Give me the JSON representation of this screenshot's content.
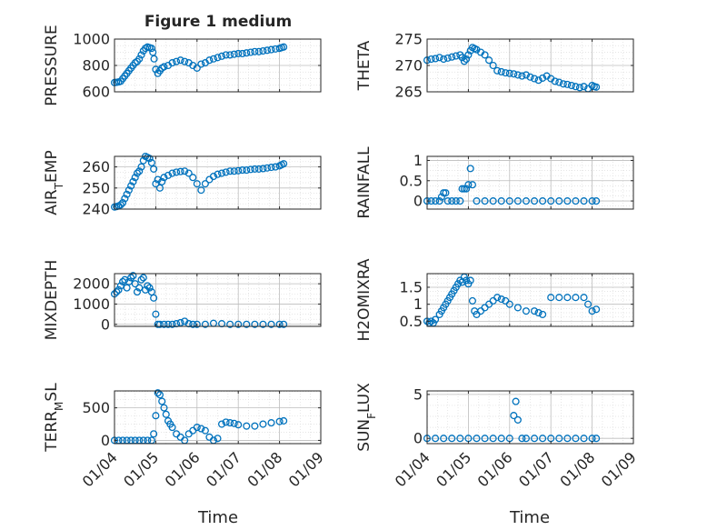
{
  "figure_title": "Figure 1 medium",
  "colors": {
    "marker": "#0072BD",
    "axis": "#262626",
    "grid": "#bdbdbd",
    "background": "#ffffff"
  },
  "chart_data": [
    {
      "type": "scatter",
      "ylabel": "PRESSURE",
      "ylim": [
        600,
        1000
      ],
      "yticks": [
        600,
        800,
        1000
      ],
      "xlim": [
        0,
        5
      ],
      "x": [
        0.0,
        0.05,
        0.1,
        0.15,
        0.2,
        0.25,
        0.3,
        0.35,
        0.4,
        0.45,
        0.5,
        0.55,
        0.6,
        0.65,
        0.7,
        0.75,
        0.8,
        0.85,
        0.9,
        0.93,
        0.96,
        1.0,
        1.05,
        1.1,
        1.15,
        1.2,
        1.3,
        1.4,
        1.5,
        1.6,
        1.7,
        1.8,
        1.9,
        2.0,
        2.1,
        2.2,
        2.3,
        2.4,
        2.5,
        2.6,
        2.7,
        2.8,
        2.9,
        3.0,
        3.1,
        3.2,
        3.3,
        3.4,
        3.5,
        3.6,
        3.7,
        3.8,
        3.9,
        4.0,
        4.05,
        4.1
      ],
      "y": [
        670,
        672,
        675,
        680,
        700,
        720,
        740,
        760,
        780,
        800,
        820,
        830,
        850,
        880,
        910,
        930,
        940,
        935,
        930,
        900,
        850,
        770,
        740,
        760,
        780,
        790,
        800,
        820,
        830,
        840,
        830,
        820,
        800,
        780,
        810,
        820,
        840,
        850,
        860,
        870,
        880,
        880,
        885,
        890,
        890,
        895,
        900,
        905,
        905,
        910,
        915,
        920,
        925,
        930,
        935,
        940
      ]
    },
    {
      "type": "scatter",
      "ylabel": "THETA",
      "ylim": [
        265,
        275
      ],
      "yticks": [
        265,
        270,
        275
      ],
      "xlim": [
        0,
        5
      ],
      "x": [
        0.0,
        0.1,
        0.2,
        0.3,
        0.4,
        0.5,
        0.6,
        0.7,
        0.8,
        0.85,
        0.9,
        0.95,
        1.0,
        1.05,
        1.1,
        1.15,
        1.2,
        1.3,
        1.4,
        1.5,
        1.6,
        1.7,
        1.8,
        1.9,
        2.0,
        2.1,
        2.2,
        2.3,
        2.4,
        2.5,
        2.6,
        2.7,
        2.8,
        2.9,
        3.0,
        3.1,
        3.2,
        3.3,
        3.4,
        3.5,
        3.6,
        3.7,
        3.8,
        3.9,
        4.0,
        4.05,
        4.1
      ],
      "y": [
        271.0,
        271.2,
        271.3,
        271.5,
        271.2,
        271.4,
        271.6,
        271.8,
        272.0,
        271.5,
        270.8,
        271.2,
        272.0,
        272.8,
        273.4,
        273.2,
        273.0,
        272.5,
        272.0,
        271.0,
        270.0,
        269.0,
        268.8,
        268.6,
        268.5,
        268.4,
        268.2,
        268.0,
        268.2,
        267.8,
        267.5,
        267.2,
        267.6,
        268.0,
        267.5,
        267.0,
        266.8,
        266.5,
        266.4,
        266.2,
        266.0,
        265.8,
        266.0,
        265.6,
        266.2,
        266.0,
        265.9
      ]
    },
    {
      "type": "scatter",
      "ylabel": "AIR_TEMP",
      "ylabel_main": "AIR",
      "ylabel_sub": "T",
      "ylabel_tail": "EMP",
      "ylim": [
        240,
        265
      ],
      "yticks": [
        240,
        250,
        260
      ],
      "xlim": [
        0,
        5
      ],
      "x": [
        0.0,
        0.05,
        0.1,
        0.15,
        0.2,
        0.25,
        0.3,
        0.35,
        0.4,
        0.45,
        0.5,
        0.55,
        0.6,
        0.65,
        0.7,
        0.75,
        0.8,
        0.85,
        0.9,
        0.95,
        1.0,
        1.05,
        1.1,
        1.15,
        1.2,
        1.3,
        1.4,
        1.5,
        1.6,
        1.7,
        1.8,
        1.9,
        2.0,
        2.1,
        2.2,
        2.3,
        2.4,
        2.5,
        2.6,
        2.7,
        2.8,
        2.9,
        3.0,
        3.1,
        3.2,
        3.3,
        3.4,
        3.5,
        3.6,
        3.7,
        3.8,
        3.9,
        4.0,
        4.05,
        4.1
      ],
      "y": [
        241.0,
        241.2,
        241.5,
        242.0,
        243.0,
        245.0,
        247.0,
        249.0,
        251.0,
        253.0,
        255.0,
        257.0,
        258.0,
        260.0,
        263.0,
        265.0,
        264.5,
        264.0,
        262.0,
        259.0,
        252.0,
        254.0,
        250.0,
        253.0,
        255.0,
        256.0,
        257.0,
        257.5,
        257.8,
        258.0,
        257.0,
        255.0,
        252.0,
        249.0,
        252.0,
        254.0,
        255.5,
        256.5,
        257.0,
        257.5,
        258.0,
        258.0,
        258.2,
        258.5,
        258.5,
        258.8,
        259.0,
        259.0,
        259.2,
        259.5,
        259.8,
        260.0,
        260.5,
        261.0,
        261.5
      ]
    },
    {
      "type": "scatter",
      "ylabel": "RAINFALL",
      "ylim": [
        -0.2,
        1.1
      ],
      "yticks": [
        0,
        0.5,
        1
      ],
      "ytick_labels": [
        "0",
        "0.5",
        "1"
      ],
      "xlim": [
        0,
        5
      ],
      "x": [
        0.0,
        0.1,
        0.2,
        0.3,
        0.35,
        0.4,
        0.45,
        0.5,
        0.6,
        0.7,
        0.8,
        0.85,
        0.9,
        0.95,
        1.0,
        1.05,
        1.1,
        1.2,
        1.4,
        1.6,
        1.8,
        2.0,
        2.2,
        2.4,
        2.6,
        2.8,
        3.0,
        3.2,
        3.4,
        3.6,
        3.8,
        4.0,
        4.1
      ],
      "y": [
        0,
        0,
        0,
        0,
        0.1,
        0.2,
        0.2,
        0,
        0,
        0,
        0,
        0.3,
        0.3,
        0.3,
        0.4,
        0.8,
        0.4,
        0,
        0,
        0,
        0,
        0,
        0,
        0,
        0,
        0,
        0,
        0,
        0,
        0,
        0,
        0,
        0
      ]
    },
    {
      "type": "scatter",
      "ylabel": "MIXDEPTH",
      "ylim": [
        -100,
        2500
      ],
      "yticks": [
        0,
        1000,
        2000
      ],
      "xlim": [
        0,
        5
      ],
      "x": [
        0.0,
        0.05,
        0.1,
        0.15,
        0.2,
        0.25,
        0.3,
        0.35,
        0.4,
        0.45,
        0.5,
        0.55,
        0.6,
        0.65,
        0.7,
        0.75,
        0.8,
        0.85,
        0.9,
        0.95,
        1.0,
        1.05,
        1.1,
        1.2,
        1.3,
        1.4,
        1.5,
        1.6,
        1.7,
        1.8,
        1.9,
        2.0,
        2.2,
        2.4,
        2.6,
        2.8,
        3.0,
        3.2,
        3.4,
        3.6,
        3.8,
        4.0,
        4.1
      ],
      "y": [
        1500,
        1600,
        1700,
        1900,
        2100,
        2200,
        1800,
        2100,
        2300,
        2400,
        2000,
        1600,
        1800,
        2200,
        2300,
        1700,
        1900,
        1800,
        1600,
        1300,
        500,
        0,
        0,
        0,
        0,
        0,
        30,
        80,
        150,
        30,
        0,
        0,
        0,
        50,
        30,
        0,
        0,
        0,
        0,
        0,
        0,
        0,
        0
      ]
    },
    {
      "type": "scatter",
      "ylabel": "H2OMIXRA",
      "ylim": [
        0.35,
        1.9
      ],
      "yticks": [
        0.5,
        1,
        1.5
      ],
      "ytick_labels": [
        "0.5",
        "1",
        "1.5"
      ],
      "xlim": [
        0,
        5
      ],
      "x": [
        0.0,
        0.05,
        0.1,
        0.15,
        0.2,
        0.3,
        0.35,
        0.4,
        0.45,
        0.5,
        0.55,
        0.6,
        0.65,
        0.7,
        0.75,
        0.8,
        0.85,
        0.9,
        0.95,
        1.0,
        1.05,
        1.1,
        1.15,
        1.2,
        1.3,
        1.4,
        1.5,
        1.6,
        1.7,
        1.8,
        1.9,
        2.0,
        2.2,
        2.4,
        2.6,
        2.7,
        2.8,
        3.0,
        3.2,
        3.4,
        3.6,
        3.8,
        3.9,
        4.0,
        4.1
      ],
      "y": [
        0.5,
        0.45,
        0.5,
        0.45,
        0.55,
        0.7,
        0.8,
        0.9,
        1.0,
        1.1,
        1.2,
        1.3,
        1.4,
        1.5,
        1.6,
        1.7,
        1.65,
        1.8,
        1.7,
        1.6,
        1.7,
        1.1,
        0.8,
        0.7,
        0.8,
        0.9,
        1.0,
        1.1,
        1.2,
        1.15,
        1.1,
        1.0,
        0.9,
        0.8,
        0.8,
        0.75,
        0.7,
        1.2,
        1.2,
        1.2,
        1.2,
        1.2,
        1.0,
        0.8,
        0.85
      ]
    },
    {
      "type": "scatter",
      "ylabel": "TERR_MSL",
      "ylabel_main": "TERR",
      "ylabel_sub": "M",
      "ylabel_tail": "SL",
      "ylim": [
        -50,
        760
      ],
      "yticks": [
        0,
        500
      ],
      "xlim": [
        0,
        5
      ],
      "x": [
        0.0,
        0.1,
        0.2,
        0.3,
        0.4,
        0.5,
        0.6,
        0.7,
        0.8,
        0.9,
        0.95,
        1.0,
        1.05,
        1.1,
        1.15,
        1.2,
        1.25,
        1.3,
        1.35,
        1.4,
        1.5,
        1.6,
        1.7,
        1.8,
        1.9,
        2.0,
        2.1,
        2.2,
        2.3,
        2.4,
        2.5,
        2.6,
        2.7,
        2.8,
        2.9,
        3.0,
        3.2,
        3.4,
        3.6,
        3.8,
        4.0,
        4.1
      ],
      "y": [
        0,
        0,
        0,
        0,
        0,
        0,
        0,
        0,
        0,
        0,
        100,
        380,
        730,
        700,
        600,
        500,
        400,
        300,
        250,
        200,
        100,
        50,
        0,
        100,
        150,
        200,
        180,
        150,
        50,
        0,
        30,
        250,
        280,
        270,
        260,
        240,
        220,
        220,
        250,
        270,
        290,
        300
      ]
    },
    {
      "type": "scatter",
      "ylabel": "SUN_FLUX",
      "ylabel_main": "SUN",
      "ylabel_sub": "F",
      "ylabel_tail": "LUX",
      "ylim": [
        -0.6,
        5.4
      ],
      "yticks": [
        0,
        5
      ],
      "xlim": [
        0,
        5
      ],
      "x": [
        0.0,
        0.2,
        0.4,
        0.6,
        0.8,
        1.0,
        1.2,
        1.4,
        1.6,
        1.8,
        2.0,
        2.1,
        2.15,
        2.2,
        2.3,
        2.4,
        2.6,
        2.8,
        3.0,
        3.2,
        3.4,
        3.6,
        3.8,
        4.0,
        4.1
      ],
      "y": [
        0,
        0,
        0,
        0,
        0,
        0,
        0,
        0,
        0,
        0,
        0,
        2.6,
        4.2,
        2.1,
        0,
        0,
        0,
        0,
        0,
        0,
        0,
        0,
        0,
        0,
        0
      ]
    }
  ],
  "x_axis": {
    "xlabel": "Time",
    "tick_labels": [
      "01/04",
      "01/05",
      "01/06",
      "01/07",
      "01/08",
      "01/09"
    ]
  }
}
